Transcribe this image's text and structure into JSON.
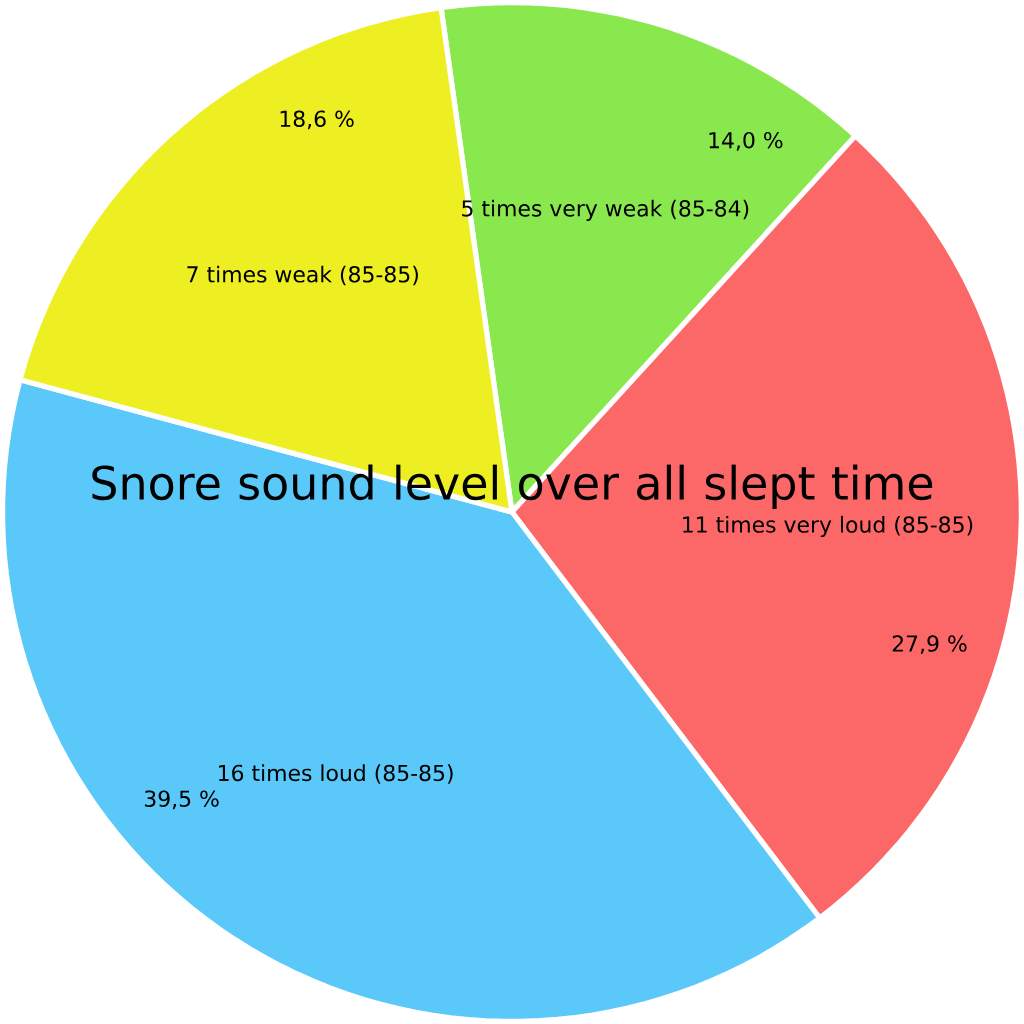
{
  "chart_data": {
    "type": "pie",
    "title": "Snore sound level over all slept time",
    "categories": [
      "5 times very weak (85-84)",
      "11 times very loud (85-85)",
      "16 times loud (85-85)",
      "7 times weak (85-85)"
    ],
    "values": [
      14.0,
      27.9,
      39.5,
      18.6
    ],
    "colors": [
      "#8ae84f",
      "#fc6868",
      "#5bc8fa",
      "#eeef22"
    ],
    "value_labels": [
      "14,0 %",
      "27,9 %",
      "39,5 %",
      "18,6 %"
    ]
  }
}
